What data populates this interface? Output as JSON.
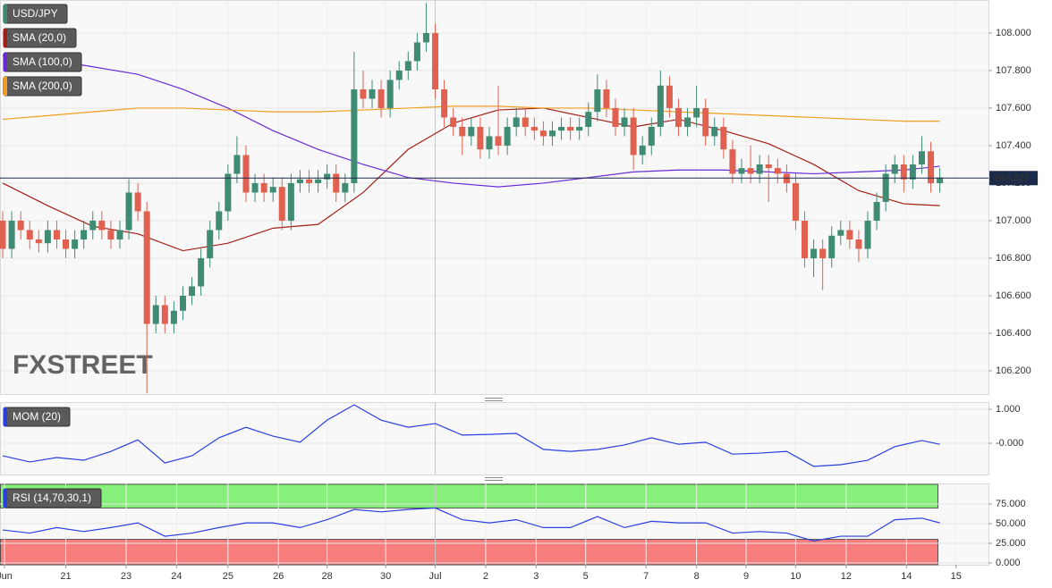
{
  "chart_data": [
    {
      "type": "candlestick",
      "name": "USD/JPY",
      "up_color": "#3f8b74",
      "down_color": "#e0614f",
      "watermark": "FXSTREET",
      "last_price": 107.227,
      "xlim": [
        -0.3,
        109.4
      ],
      "ylim": [
        106.076,
        108.176
      ],
      "yticks": [
        {
          "value": 106.2,
          "label": "106.200"
        },
        {
          "value": 106.4,
          "label": "106.400"
        },
        {
          "value": 106.6,
          "label": "106.600"
        },
        {
          "value": 106.8,
          "label": "106.800"
        },
        {
          "value": 107.0,
          "label": "107.000"
        },
        {
          "value": 107.2,
          "label": "107.200"
        },
        {
          "value": 107.4,
          "label": "107.400"
        },
        {
          "value": 107.6,
          "label": "107.600"
        },
        {
          "value": 107.8,
          "label": "107.800"
        },
        {
          "value": 108.0,
          "label": "108.000"
        }
      ],
      "grid": true,
      "open": [
        107.0,
        106.85,
        107.0,
        106.95,
        106.9,
        106.88,
        106.95,
        106.9,
        106.85,
        106.9,
        106.95,
        107.0,
        106.95,
        106.9,
        106.95,
        107.15,
        107.05,
        106.45,
        106.55,
        106.45,
        106.52,
        106.6,
        106.65,
        106.8,
        106.95,
        107.05,
        107.25,
        107.35,
        107.15,
        107.2,
        107.15,
        107.18,
        107.0,
        107.2,
        107.22,
        107.2,
        107.22,
        107.25,
        107.15,
        107.2,
        107.7,
        107.65,
        107.7,
        107.6,
        107.75,
        107.8,
        107.85,
        107.95,
        108.0,
        107.7,
        107.55,
        107.5,
        107.45,
        107.5,
        107.38,
        107.45,
        107.4,
        107.5,
        107.55,
        107.5,
        107.48,
        107.45,
        107.48,
        107.5,
        107.48,
        107.5,
        107.58,
        107.7,
        107.6,
        107.5,
        107.55,
        107.35,
        107.4,
        107.5,
        107.72,
        107.6,
        107.5,
        107.55,
        107.6,
        107.45,
        107.5,
        107.38,
        107.25,
        107.28,
        107.25,
        107.3,
        107.28,
        107.25,
        107.2,
        107.0,
        106.8,
        106.85,
        106.8,
        106.92,
        106.95,
        106.9,
        106.85,
        107.0,
        107.1,
        107.25,
        107.3,
        107.22,
        107.3,
        107.37,
        107.2
      ],
      "high": [
        107.05,
        107.05,
        107.05,
        107.0,
        106.95,
        107.0,
        107.0,
        106.95,
        106.95,
        107.0,
        107.05,
        107.05,
        107.0,
        107.0,
        107.22,
        107.2,
        107.1,
        106.6,
        106.6,
        106.57,
        106.65,
        106.7,
        106.85,
        107.0,
        107.1,
        107.3,
        107.45,
        107.4,
        107.25,
        107.25,
        107.23,
        107.23,
        107.25,
        107.27,
        107.27,
        107.27,
        107.3,
        107.3,
        107.25,
        107.9,
        107.8,
        107.75,
        107.75,
        107.8,
        107.85,
        107.9,
        108.0,
        108.16,
        108.05,
        107.75,
        107.6,
        107.55,
        107.55,
        107.55,
        107.5,
        107.72,
        107.55,
        107.6,
        107.6,
        107.55,
        107.53,
        107.53,
        107.55,
        107.55,
        107.55,
        107.63,
        107.78,
        107.75,
        107.65,
        107.6,
        107.6,
        107.45,
        107.55,
        107.8,
        107.77,
        107.65,
        107.6,
        107.72,
        107.65,
        107.55,
        107.55,
        107.43,
        107.33,
        107.4,
        107.35,
        107.35,
        107.33,
        107.3,
        107.25,
        107.05,
        106.9,
        106.9,
        106.97,
        107.0,
        107.0,
        106.95,
        107.05,
        107.15,
        107.3,
        107.35,
        107.35,
        107.35,
        107.45,
        107.42,
        107.28
      ],
      "low": [
        106.8,
        106.8,
        106.9,
        106.85,
        106.83,
        106.83,
        106.85,
        106.8,
        106.8,
        106.85,
        106.9,
        106.9,
        106.85,
        106.85,
        106.9,
        107.0,
        106.08,
        106.4,
        106.4,
        106.4,
        106.47,
        106.55,
        106.6,
        106.75,
        106.9,
        107.0,
        107.2,
        107.1,
        107.1,
        107.1,
        107.1,
        106.95,
        106.95,
        107.15,
        107.15,
        107.15,
        107.17,
        107.1,
        107.1,
        107.15,
        107.6,
        107.6,
        107.55,
        107.55,
        107.7,
        107.75,
        107.8,
        107.9,
        107.65,
        107.5,
        107.45,
        107.35,
        107.4,
        107.33,
        107.33,
        107.35,
        107.35,
        107.45,
        107.45,
        107.43,
        107.4,
        107.4,
        107.43,
        107.43,
        107.43,
        107.45,
        107.53,
        107.55,
        107.45,
        107.45,
        107.27,
        107.3,
        107.35,
        107.45,
        107.55,
        107.45,
        107.45,
        107.5,
        107.4,
        107.4,
        107.33,
        107.2,
        107.2,
        107.2,
        107.2,
        107.1,
        107.2,
        107.15,
        106.95,
        106.75,
        106.7,
        106.63,
        106.75,
        106.87,
        106.85,
        106.78,
        106.8,
        106.95,
        107.05,
        107.2,
        107.15,
        107.17,
        107.25,
        107.15,
        107.15
      ],
      "close": [
        106.85,
        107.0,
        106.95,
        106.9,
        106.88,
        106.95,
        106.9,
        106.85,
        106.9,
        106.95,
        107.0,
        106.95,
        106.9,
        106.95,
        107.15,
        107.05,
        106.45,
        106.55,
        106.45,
        106.52,
        106.6,
        106.65,
        106.8,
        106.95,
        107.05,
        107.25,
        107.35,
        107.15,
        107.2,
        107.15,
        107.18,
        107.0,
        107.2,
        107.22,
        107.2,
        107.22,
        107.25,
        107.15,
        107.2,
        107.7,
        107.65,
        107.7,
        107.6,
        107.75,
        107.8,
        107.85,
        107.95,
        108.0,
        107.7,
        107.55,
        107.5,
        107.45,
        107.5,
        107.38,
        107.45,
        107.4,
        107.5,
        107.55,
        107.5,
        107.48,
        107.45,
        107.48,
        107.5,
        107.48,
        107.5,
        107.58,
        107.7,
        107.6,
        107.5,
        107.55,
        107.35,
        107.4,
        107.5,
        107.72,
        107.6,
        107.5,
        107.55,
        107.6,
        107.45,
        107.5,
        107.38,
        107.25,
        107.28,
        107.25,
        107.3,
        107.28,
        107.25,
        107.2,
        107.0,
        106.8,
        106.85,
        106.8,
        106.92,
        106.95,
        106.9,
        106.85,
        107.0,
        107.1,
        107.25,
        107.3,
        107.22,
        107.3,
        107.37,
        107.2,
        107.23
      ],
      "series": [
        {
          "name": "SMA (20,0)",
          "color": "#a31f17",
          "x": [
            0,
            5,
            10,
            15,
            20,
            25,
            30,
            35,
            40,
            45,
            50,
            55,
            60,
            65,
            70,
            75,
            80,
            85,
            90,
            95,
            100,
            104
          ],
          "values": [
            107.2,
            107.08,
            106.97,
            106.93,
            106.84,
            106.88,
            106.96,
            106.98,
            107.15,
            107.38,
            107.52,
            107.59,
            107.6,
            107.55,
            107.5,
            107.54,
            107.48,
            107.41,
            107.3,
            107.16,
            107.09,
            107.08
          ]
        },
        {
          "name": "SMA (100,0)",
          "color": "#6a2bd6",
          "x": [
            0,
            5,
            10,
            15,
            20,
            25,
            30,
            35,
            40,
            45,
            50,
            55,
            60,
            65,
            70,
            75,
            80,
            85,
            90,
            95,
            100,
            104
          ],
          "values": [
            107.88,
            107.86,
            107.82,
            107.78,
            107.7,
            107.6,
            107.48,
            107.38,
            107.3,
            107.23,
            107.2,
            107.18,
            107.2,
            107.23,
            107.26,
            107.27,
            107.27,
            107.26,
            107.25,
            107.26,
            107.27,
            107.29
          ]
        },
        {
          "name": "SMA (200,0)",
          "color": "#f29d1f",
          "x": [
            0,
            5,
            10,
            15,
            20,
            25,
            30,
            35,
            40,
            45,
            50,
            55,
            60,
            65,
            70,
            75,
            80,
            85,
            90,
            95,
            100,
            104
          ],
          "values": [
            107.54,
            107.56,
            107.58,
            107.6,
            107.6,
            107.59,
            107.58,
            107.58,
            107.59,
            107.6,
            107.61,
            107.61,
            107.6,
            107.6,
            107.59,
            107.58,
            107.57,
            107.56,
            107.55,
            107.54,
            107.53,
            107.53
          ]
        }
      ]
    },
    {
      "type": "line",
      "xlim": [
        -0.3,
        109.4
      ],
      "ylim": [
        -0.92,
        1.21
      ],
      "yticks": [
        {
          "value": 1,
          "label": "1.000"
        },
        {
          "value": 0,
          "label": "-0.000"
        }
      ],
      "grid": true,
      "series": [
        {
          "name": "MOM (20)",
          "color": "#2a3fe0",
          "x": [
            0,
            3,
            6,
            9,
            12,
            15,
            18,
            21,
            24,
            27,
            30,
            33,
            36,
            39,
            42,
            45,
            48,
            51,
            54,
            57,
            60,
            63,
            66,
            69,
            72,
            75,
            78,
            81,
            84,
            87,
            90,
            93,
            96,
            99,
            102,
            104
          ],
          "values": [
            -0.37,
            -0.55,
            -0.42,
            -0.5,
            -0.24,
            0.1,
            -0.58,
            -0.37,
            0.16,
            0.47,
            0.21,
            0.03,
            0.68,
            1.13,
            0.68,
            0.47,
            0.58,
            0.24,
            0.26,
            0.29,
            -0.18,
            -0.24,
            -0.18,
            -0.05,
            0.16,
            -0.03,
            0.03,
            -0.32,
            -0.29,
            -0.24,
            -0.68,
            -0.63,
            -0.5,
            -0.1,
            0.08,
            -0.03
          ]
        }
      ]
    },
    {
      "type": "line",
      "xlim": [
        -0.3,
        109.4
      ],
      "ylim": [
        0,
        100
      ],
      "yticks": [
        {
          "value": 0,
          "label": "0.000"
        },
        {
          "value": 25,
          "label": "25.000"
        },
        {
          "value": 50,
          "label": "50.000"
        },
        {
          "value": 75,
          "label": "75.000"
        }
      ],
      "grid": true,
      "upper_band": 70,
      "upper_color": "#86f07a",
      "lower_band": 30,
      "lower_color": "#f77c7c",
      "xticks": [
        {
          "value": 0.2,
          "label": "Jun"
        },
        {
          "value": 7,
          "label": "21"
        },
        {
          "value": 13.7,
          "label": "23"
        },
        {
          "value": 19.3,
          "label": "24"
        },
        {
          "value": 25,
          "label": "25"
        },
        {
          "value": 30.6,
          "label": "26"
        },
        {
          "value": 36,
          "label": "28"
        },
        {
          "value": 42.5,
          "label": "30"
        },
        {
          "value": 48,
          "label": "Jul"
        },
        {
          "value": 53.6,
          "label": "2"
        },
        {
          "value": 59.2,
          "label": "3"
        },
        {
          "value": 64.7,
          "label": "5"
        },
        {
          "value": 71.4,
          "label": "7"
        },
        {
          "value": 77,
          "label": "8"
        },
        {
          "value": 82.5,
          "label": "9"
        },
        {
          "value": 88,
          "label": "10"
        },
        {
          "value": 93.6,
          "label": "12"
        },
        {
          "value": 100.3,
          "label": "14"
        },
        {
          "value": 105.8,
          "label": "15"
        }
      ],
      "series": [
        {
          "name": "RSI (14,70,30,1)",
          "color": "#2a3fe0",
          "x": [
            0,
            3,
            6,
            9,
            12,
            15,
            18,
            21,
            24,
            27,
            30,
            33,
            36,
            39,
            42,
            45,
            48,
            51,
            54,
            57,
            60,
            63,
            66,
            69,
            72,
            75,
            78,
            81,
            84,
            87,
            90,
            93,
            96,
            99,
            102,
            104
          ],
          "values": [
            42,
            38,
            45,
            40,
            45,
            51,
            34,
            38,
            45,
            51,
            51,
            45,
            55,
            68,
            65,
            68,
            70,
            55,
            51,
            55,
            45,
            45,
            59,
            45,
            53,
            51,
            51,
            38,
            40,
            38,
            28,
            34,
            34,
            55,
            57,
            51
          ]
        }
      ]
    }
  ]
}
